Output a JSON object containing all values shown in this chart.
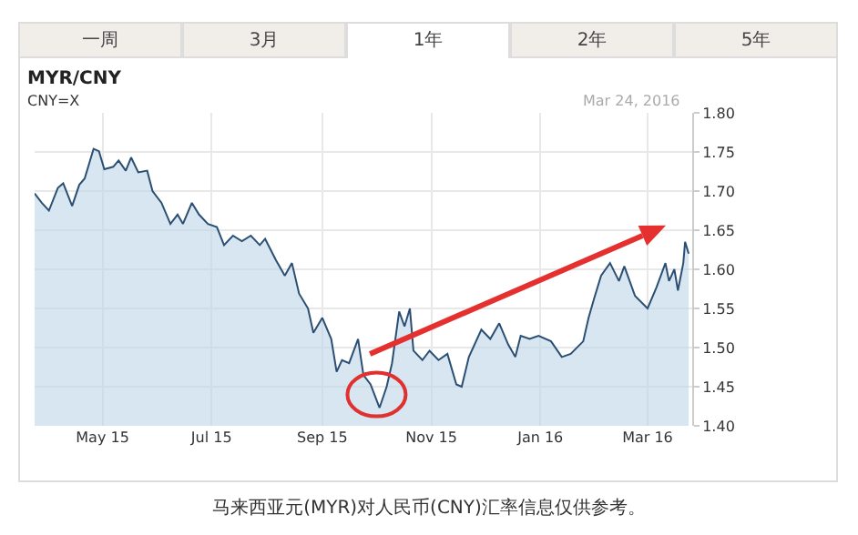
{
  "chart_data": {
    "type": "area",
    "title": "MYR/CNY",
    "subtitle": "CNY=X",
    "annotations": [
      "一周",
      "3月",
      "1年",
      "2年",
      "5年",
      "Mar 24, 2016",
      "马来西亚元(MYR)对人民币(CNY)汇率信息仅供参考。"
    ],
    "x": [
      "2015-03-24",
      "2015-03-28",
      "2015-04-01",
      "2015-04-06",
      "2015-04-09",
      "2015-04-14",
      "2015-04-18",
      "2015-04-21",
      "2015-04-26",
      "2015-04-29",
      "2015-05-02",
      "2015-05-07",
      "2015-05-10",
      "2015-05-14",
      "2015-05-17",
      "2015-05-21",
      "2015-05-26",
      "2015-05-29",
      "2015-06-03",
      "2015-06-08",
      "2015-06-12",
      "2015-06-15",
      "2015-06-20",
      "2015-06-24",
      "2015-06-29",
      "2015-07-04",
      "2015-07-08",
      "2015-07-13",
      "2015-07-18",
      "2015-07-23",
      "2015-07-28",
      "2015-07-31",
      "2015-08-06",
      "2015-08-11",
      "2015-08-15",
      "2015-08-19",
      "2015-08-24",
      "2015-08-27",
      "2015-09-01",
      "2015-09-06",
      "2015-09-09",
      "2015-09-12",
      "2015-09-16",
      "2015-09-21",
      "2015-09-24",
      "2015-09-28",
      "2015-10-03",
      "2015-10-07",
      "2015-10-10",
      "2015-10-14",
      "2015-10-17",
      "2015-10-20",
      "2015-10-22",
      "2015-10-27",
      "2015-10-31",
      "2015-11-05",
      "2015-11-10",
      "2015-11-15",
      "2015-11-18",
      "2015-11-22",
      "2015-11-29",
      "2015-12-04",
      "2015-12-09",
      "2015-12-14",
      "2015-12-18",
      "2015-12-21",
      "2015-12-26",
      "2015-12-31",
      "2016-01-07",
      "2016-01-13",
      "2016-01-18",
      "2016-01-25",
      "2016-01-28",
      "2016-01-31",
      "2016-02-04",
      "2016-02-09",
      "2016-02-14",
      "2016-02-17",
      "2016-02-23",
      "2016-03-01",
      "2016-03-06",
      "2016-03-11",
      "2016-03-13",
      "2016-03-16",
      "2016-03-18",
      "2016-03-21",
      "2016-03-22",
      "2016-03-24"
    ],
    "series": [
      {
        "color": "#2b4f73",
        "values": [
          1.697,
          1.685,
          1.675,
          1.704,
          1.71,
          1.681,
          1.708,
          1.716,
          1.754,
          1.751,
          1.728,
          1.731,
          1.739,
          1.726,
          1.743,
          1.724,
          1.726,
          1.7,
          1.685,
          1.658,
          1.67,
          1.658,
          1.685,
          1.67,
          1.658,
          1.654,
          1.631,
          1.643,
          1.636,
          1.643,
          1.631,
          1.639,
          1.612,
          1.592,
          1.608,
          1.569,
          1.55,
          1.519,
          1.538,
          1.511,
          1.469,
          1.484,
          1.48,
          1.511,
          1.465,
          1.453,
          1.423,
          1.45,
          1.48,
          1.546,
          1.527,
          1.55,
          1.496,
          1.484,
          1.496,
          1.484,
          1.492,
          1.453,
          1.45,
          1.488,
          1.523,
          1.511,
          1.531,
          1.504,
          1.488,
          1.515,
          1.511,
          1.515,
          1.508,
          1.488,
          1.492,
          1.508,
          1.538,
          1.562,
          1.592,
          1.608,
          1.585,
          1.604,
          1.566,
          1.55,
          1.577,
          1.608,
          1.585,
          1.6,
          1.573,
          1.608,
          1.635,
          1.62
        ]
      }
    ],
    "xlim": [
      "2015-03-24",
      "2016-03-26"
    ],
    "xticks": [
      {
        "value": "2015-05-01",
        "label": "May 15"
      },
      {
        "value": "2015-07-01",
        "label": "Jul 15"
      },
      {
        "value": "2015-09-01",
        "label": "Sep 15"
      },
      {
        "value": "2015-11-01",
        "label": "Nov 15"
      },
      {
        "value": "2016-01-01",
        "label": "Jan 16"
      },
      {
        "value": "2016-03-01",
        "label": "Mar 16"
      }
    ],
    "ylim": [
      1.4,
      1.8
    ],
    "yticks": [
      {
        "value": 1.4,
        "label": "1.40"
      },
      {
        "value": 1.45,
        "label": "1.45"
      },
      {
        "value": 1.5,
        "label": "1.50"
      },
      {
        "value": 1.55,
        "label": "1.55"
      },
      {
        "value": 1.6,
        "label": "1.60"
      },
      {
        "value": 1.65,
        "label": "1.65"
      },
      {
        "value": 1.7,
        "label": "1.70"
      },
      {
        "value": 1.75,
        "label": "1.75"
      },
      {
        "value": 1.8,
        "label": "1.80"
      }
    ],
    "grid": true
  }
}
